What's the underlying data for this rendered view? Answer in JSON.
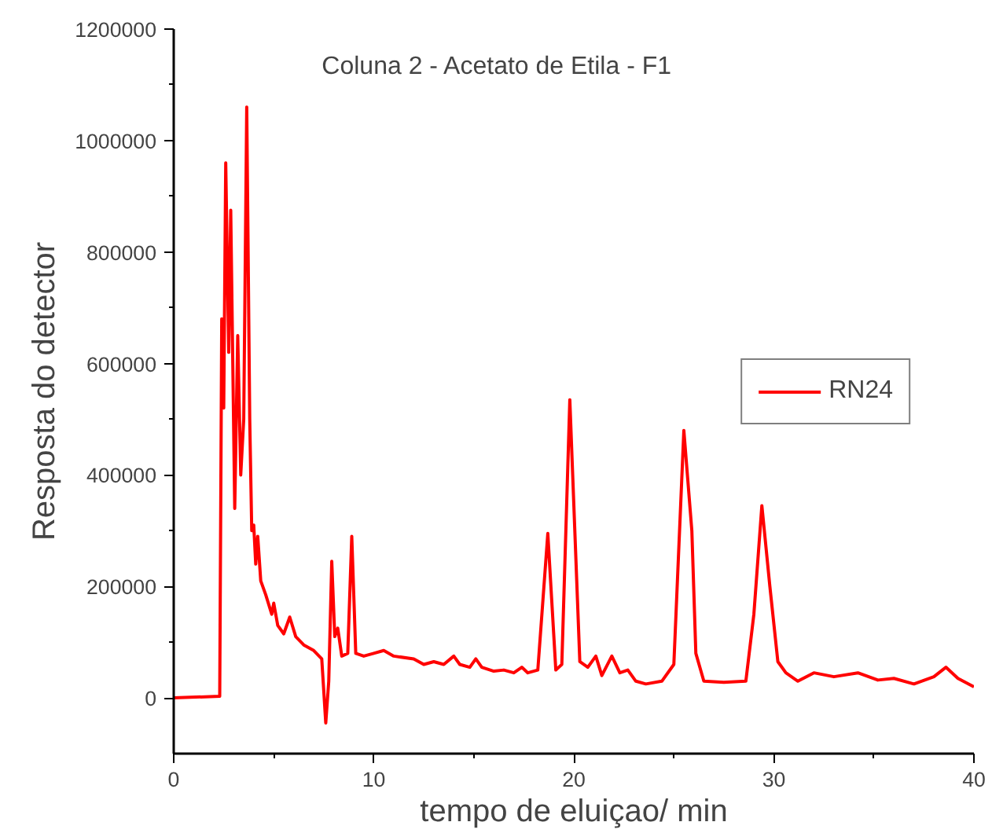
{
  "chart_data": {
    "type": "line",
    "title": "Coluna 2 - Acetato de Etila - F1",
    "xlabel": "tempo de eluiçao/ min",
    "ylabel": "Resposta do detector",
    "xlim": [
      0,
      40
    ],
    "xticks": [
      0,
      10,
      20,
      30,
      40
    ],
    "ylim": [
      -100000,
      1200000
    ],
    "yticks": [
      0,
      200000,
      400000,
      600000,
      800000,
      1000000,
      1200000
    ],
    "grid": false,
    "legend": "right",
    "marker": "none",
    "line_style": "solid",
    "series": [
      {
        "name": "RN24",
        "color": "#ff0000",
        "x": [
          0,
          2.3,
          2.4,
          2.5,
          2.6,
          2.75,
          2.85,
          3.05,
          3.2,
          3.35,
          3.5,
          3.65,
          3.8,
          3.9,
          4.0,
          4.1,
          4.2,
          4.35,
          4.6,
          4.9,
          5.0,
          5.2,
          5.5,
          5.8,
          6.1,
          6.5,
          7.0,
          7.4,
          7.6,
          7.75,
          7.9,
          8.05,
          8.2,
          8.4,
          8.7,
          8.9,
          9.1,
          9.5,
          10,
          10.5,
          11,
          12,
          12.5,
          13,
          13.5,
          14,
          14.3,
          14.8,
          15.1,
          15.4,
          16,
          16.5,
          17,
          17.4,
          17.7,
          18.2,
          18.7,
          19.1,
          19.4,
          19.8,
          20.3,
          20.7,
          21.1,
          21.4,
          21.9,
          22.3,
          22.7,
          23.1,
          23.6,
          24.4,
          25.0,
          25.5,
          25.9,
          26.1,
          26.5,
          27.5,
          28.6,
          29.0,
          29.4,
          29.8,
          30.2,
          30.6,
          31.2,
          32,
          33,
          34.2,
          35.2,
          36,
          37,
          38,
          38.6,
          39.2,
          40
        ],
        "values": [
          0,
          3000,
          680000,
          520000,
          960000,
          620000,
          875000,
          340000,
          650000,
          400000,
          500000,
          1060000,
          500000,
          300000,
          310000,
          240000,
          290000,
          210000,
          185000,
          150000,
          170000,
          130000,
          115000,
          145000,
          110000,
          95000,
          85000,
          70000,
          -45000,
          30000,
          245000,
          110000,
          125000,
          75000,
          80000,
          290000,
          80000,
          75000,
          80000,
          85000,
          75000,
          70000,
          60000,
          65000,
          60000,
          75000,
          60000,
          55000,
          70000,
          55000,
          48000,
          50000,
          45000,
          55000,
          45000,
          50000,
          295000,
          50000,
          60000,
          535000,
          65000,
          55000,
          75000,
          40000,
          75000,
          45000,
          50000,
          30000,
          25000,
          30000,
          60000,
          480000,
          300000,
          80000,
          30000,
          28000,
          30000,
          150000,
          345000,
          200000,
          65000,
          45000,
          30000,
          45000,
          38000,
          45000,
          32000,
          35000,
          25000,
          38000,
          55000,
          35000,
          20000
        ]
      }
    ]
  }
}
